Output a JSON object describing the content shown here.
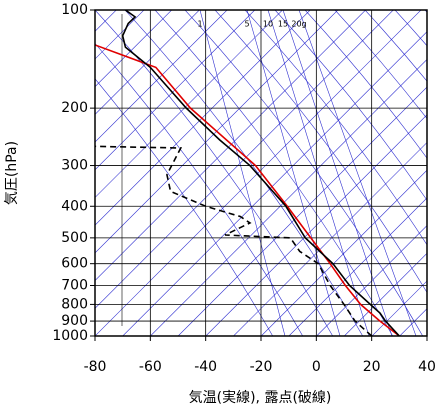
{
  "chart_data": {
    "type": "line",
    "xlabel": "気温(実線), 露点(破線)",
    "ylabel": "気圧(hPa)",
    "xlim": [
      -80,
      40
    ],
    "xticks": [
      -80,
      -60,
      -40,
      -20,
      0,
      20,
      40
    ],
    "ylim": [
      1000,
      100
    ],
    "yscale": "log",
    "yticks": [
      100,
      200,
      300,
      400,
      500,
      600,
      700,
      800,
      900,
      1000
    ],
    "grid": true,
    "mixing_ratio_labels": [
      "1",
      "5",
      "10",
      "15",
      "20g"
    ],
    "series": [
      {
        "color": "#e00000",
        "dash": false,
        "values": [
          30,
          23,
          16,
          10.5,
          5,
          -2,
          -10.5,
          -22,
          -45.5,
          -58,
          -80
        ],
        "pressure": [
          1000,
          900,
          800,
          700,
          600,
          500,
          400,
          300,
          200,
          150,
          128
        ]
      },
      {
        "color": "#000000",
        "dash": false,
        "values": [
          30,
          25,
          23,
          19.5,
          12,
          6,
          -4,
          -11,
          -24,
          -35,
          -47,
          -60,
          -69,
          -70,
          -68,
          -65.5,
          -69
        ],
        "pressure": [
          1000,
          900,
          850,
          800,
          700,
          600,
          500,
          400,
          300,
          250,
          200,
          150,
          130,
          120,
          110,
          105,
          100
        ]
      },
      {
        "color": "#000000",
        "dash": true,
        "values": [
          20,
          14,
          10,
          5,
          0.7,
          -6,
          -9.4,
          -33,
          -24,
          -27.5,
          -40,
          -52.7,
          -54,
          -49,
          -80
        ],
        "pressure": [
          1000,
          900,
          800,
          700,
          600,
          550,
          500,
          490,
          450,
          430,
          400,
          360,
          320,
          265,
          262
        ]
      }
    ]
  }
}
